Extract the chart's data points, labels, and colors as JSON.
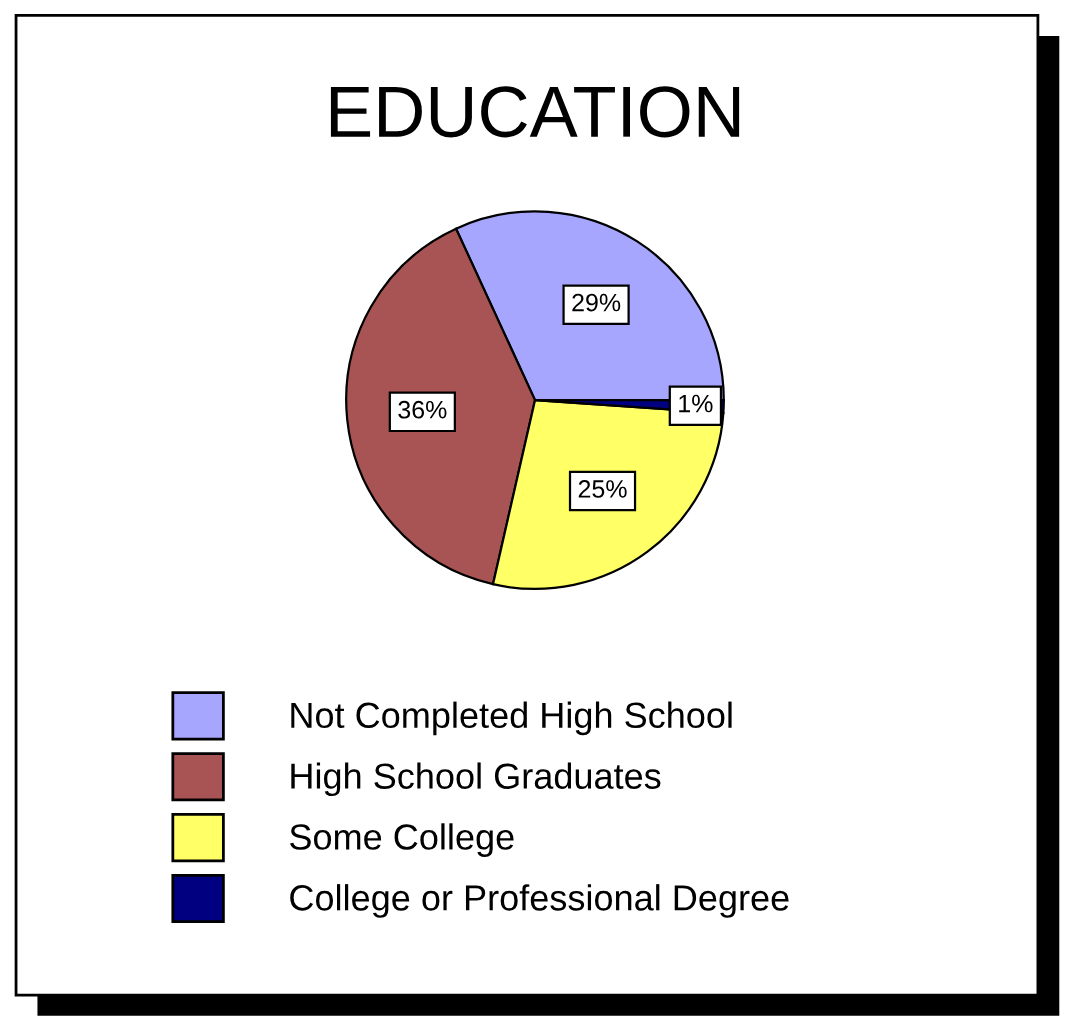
{
  "chart_data": {
    "type": "pie",
    "title": "EDUCATION",
    "categories": [
      "Not Completed High School",
      "High School Graduates",
      "Some College",
      "College or Professional Degree"
    ],
    "values": [
      29,
      36,
      25,
      1
    ],
    "colors": [
      "#a6a6ff",
      "#a85454",
      "#ffff66",
      "#000080"
    ],
    "value_labels": [
      "29%",
      "36%",
      "25%",
      "1%"
    ],
    "legend": "bottom"
  }
}
